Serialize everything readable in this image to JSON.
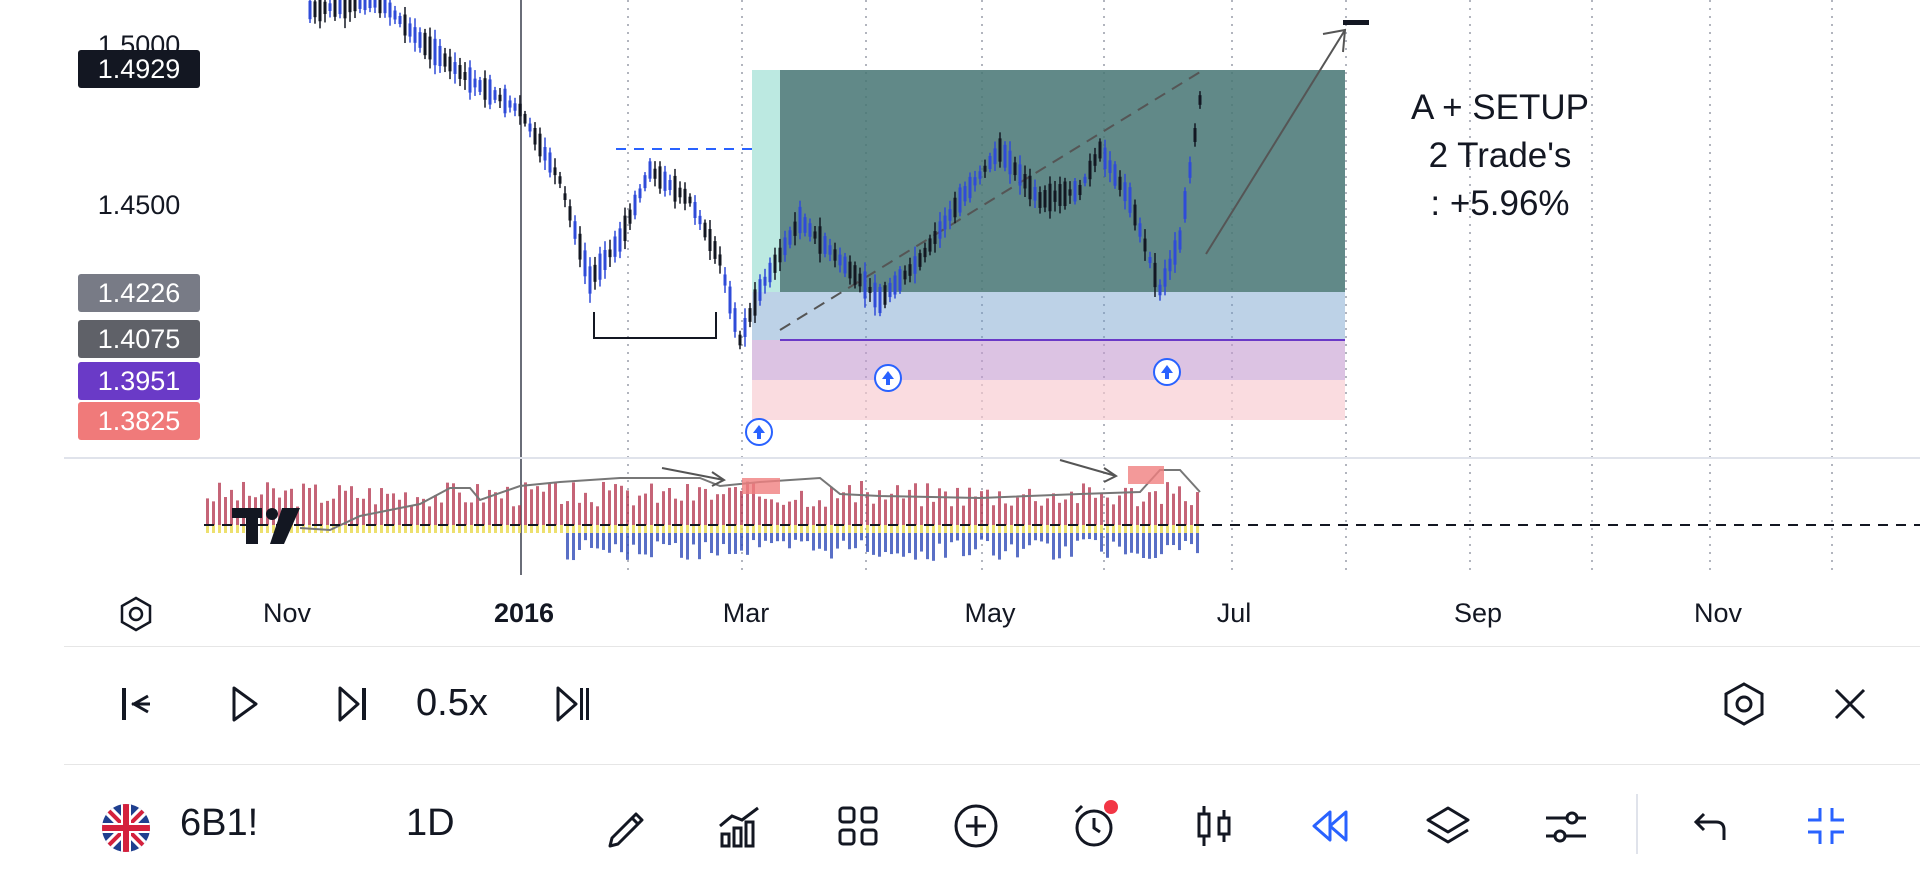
{
  "price_scale": {
    "top_label": "1.5000",
    "mid_label": "1.4500",
    "tags": [
      {
        "name": "current-price",
        "label": "1.4929",
        "color": "#131722"
      },
      {
        "name": "tag-1",
        "label": "1.4226",
        "color": "#787b86"
      },
      {
        "name": "tag-2",
        "label": "1.4075",
        "color": "#5f6168"
      },
      {
        "name": "tag-3",
        "label": "1.3951",
        "color": "#6a3ac7"
      },
      {
        "name": "tag-4",
        "label": "1.3825",
        "color": "#f07a7a"
      }
    ]
  },
  "annotation": {
    "line1": "A + SETUP",
    "line2": "2 Trade's",
    "line3": ":  +5.96%"
  },
  "time_axis": {
    "labels": [
      {
        "text": "Nov",
        "year": false
      },
      {
        "text": "2016",
        "year": true
      },
      {
        "text": "Mar",
        "year": false
      },
      {
        "text": "May",
        "year": false
      },
      {
        "text": "Jul",
        "year": false
      },
      {
        "text": "Sep",
        "year": false
      },
      {
        "text": "Nov",
        "year": false
      }
    ]
  },
  "replay": {
    "speed": "0.5x",
    "buttons": [
      "select-start",
      "play",
      "step-forward",
      "jump-to-realtime"
    ]
  },
  "toolbar": {
    "symbol": "6B1!",
    "interval": "1D",
    "icons": [
      "pencil-icon",
      "indicators-icon",
      "layout-grid-icon",
      "add-icon",
      "alert-icon",
      "candles-icon",
      "replay-icon",
      "layers-icon",
      "settings-sliders-icon",
      "undo-icon",
      "collapse-icon"
    ]
  },
  "colors": {
    "up_candle": "#2f4bd8",
    "down_candle": "#131722",
    "profit_zone": "#4f7a7a",
    "stop_zone": "#f4c2c6",
    "entry_zone": "#c9a7d6",
    "accent": "#2962ff",
    "alert_dot": "#f23645"
  }
}
